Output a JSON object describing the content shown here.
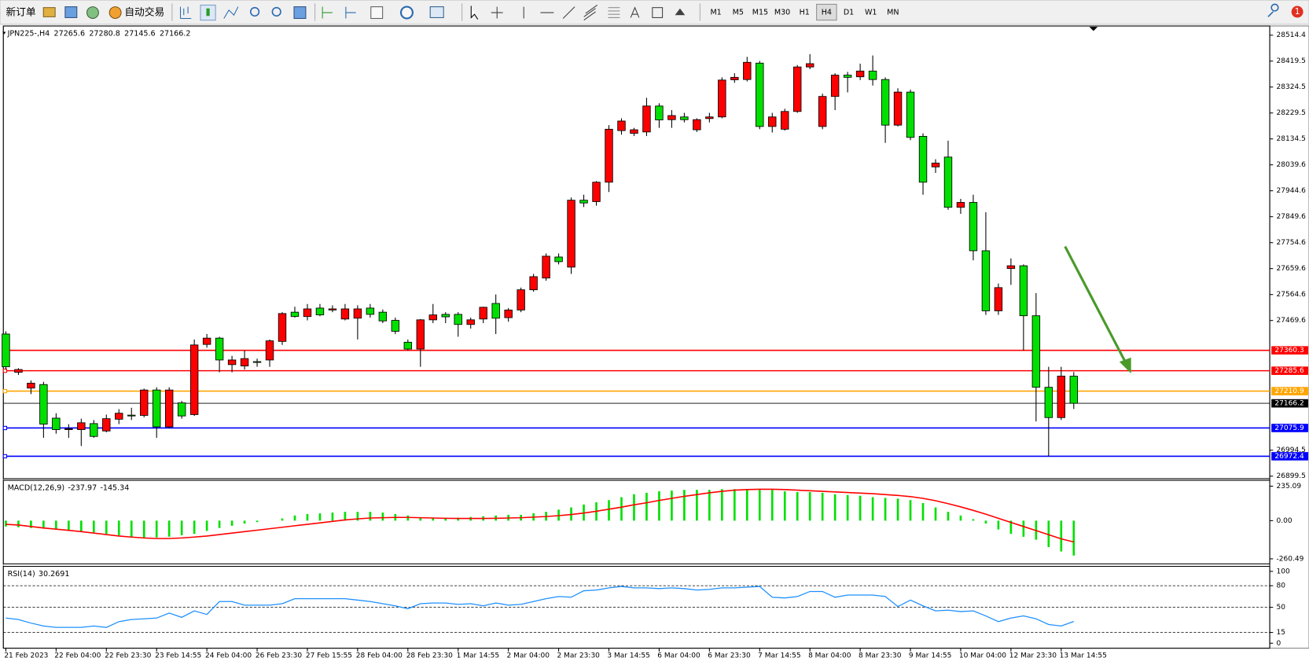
{
  "toolbar": {
    "new_order": "新订单",
    "auto_trading": "自动交易",
    "timeframes": [
      "M1",
      "M5",
      "M15",
      "M30",
      "H1",
      "H4",
      "D1",
      "W1",
      "MN"
    ],
    "active_timeframe": 5,
    "notifications": 1
  },
  "chart_data": [
    {
      "type": "candlestick",
      "title": "JPN225-,H4",
      "up_color": "#ff0000",
      "down_color": "#00e000",
      "ylim": [
        26893.4,
        28545.0
      ],
      "yticks": [
        28514.4,
        28419.5,
        28324.5,
        28229.5,
        28134.5,
        28039.6,
        27944.6,
        27849.6,
        27754.6,
        27659.6,
        27564.6,
        27469.6,
        26994.5,
        26899.5
      ],
      "levels": [
        {
          "value": 27360.3,
          "color": "#ff0000"
        },
        {
          "value": 27285.6,
          "color": "#ff0000"
        },
        {
          "value": 27210.9,
          "color": "#ffa500"
        },
        {
          "value": 27075.9,
          "color": "#0000ff"
        },
        {
          "value": 26972.4,
          "color": "#0000ff"
        }
      ],
      "xlabels": [
        "21 Feb 2023",
        "22 Feb 04:00",
        "22 Feb 23:30",
        "23 Feb 14:55",
        "24 Feb 04:00",
        "26 Feb 23:30",
        "27 Feb 15:55",
        "28 Feb 04:00",
        "28 Feb 23:30",
        "1 Mar 14:55",
        "2 Mar 04:00",
        "2 Mar 23:30",
        "3 Mar 14:55",
        "6 Mar 04:00",
        "6 Mar 23:30",
        "7 Mar 14:55",
        "8 Mar 04:00",
        "8 Mar 23:30",
        "9 Mar 14:55",
        "10 Mar 04:00",
        "12 Mar 23:30",
        "13 Mar 14:55"
      ],
      "ohlc": [
        [
          27420,
          27430,
          27290,
          27300
        ],
        [
          27280,
          27295,
          27270,
          27290
        ],
        [
          27222,
          27250,
          27200,
          27240
        ],
        [
          27235,
          27245,
          27040,
          27090
        ],
        [
          27112,
          27130,
          27055,
          27070
        ],
        [
          27071,
          27090,
          27040,
          27073
        ],
        [
          27070,
          27110,
          27010,
          27095
        ],
        [
          27092,
          27105,
          27040,
          27045
        ],
        [
          27065,
          27125,
          27060,
          27110
        ],
        [
          27108,
          27145,
          27090,
          27130
        ],
        [
          27123,
          27150,
          27105,
          27122
        ],
        [
          27122,
          27220,
          27115,
          27215
        ],
        [
          27215,
          27225,
          27040,
          27080
        ],
        [
          27080,
          27225,
          27075,
          27215
        ],
        [
          27168,
          27175,
          27110,
          27120
        ],
        [
          27125,
          27400,
          27120,
          27380
        ],
        [
          27382,
          27420,
          27370,
          27405
        ],
        [
          27405,
          27410,
          27280,
          27325
        ],
        [
          27308,
          27340,
          27280,
          27325
        ],
        [
          27303,
          27360,
          27290,
          27330
        ],
        [
          27319,
          27330,
          27300,
          27318
        ],
        [
          27325,
          27400,
          27300,
          27395
        ],
        [
          27393,
          27500,
          27380,
          27495
        ],
        [
          27500,
          27520,
          27480,
          27484
        ],
        [
          27484,
          27530,
          27470,
          27512
        ],
        [
          27515,
          27530,
          27485,
          27490
        ],
        [
          27508,
          27525,
          27500,
          27512
        ],
        [
          27475,
          27530,
          27470,
          27512
        ],
        [
          27478,
          27525,
          27400,
          27512
        ],
        [
          27515,
          27530,
          27480,
          27492
        ],
        [
          27500,
          27510,
          27460,
          27468
        ],
        [
          27470,
          27480,
          27420,
          27430
        ],
        [
          27390,
          27400,
          27360,
          27365
        ],
        [
          27365,
          27475,
          27300,
          27472
        ],
        [
          27472,
          27530,
          27460,
          27490
        ],
        [
          27492,
          27500,
          27460,
          27483
        ],
        [
          27492,
          27500,
          27410,
          27455
        ],
        [
          27455,
          27480,
          27440,
          27472
        ],
        [
          27475,
          27520,
          27460,
          27518
        ],
        [
          27532,
          27565,
          27420,
          27478
        ],
        [
          27480,
          27515,
          27465,
          27508
        ],
        [
          27508,
          27590,
          27500,
          27582
        ],
        [
          27582,
          27640,
          27575,
          27630
        ],
        [
          27625,
          27715,
          27615,
          27705
        ],
        [
          27702,
          27715,
          27675,
          27685
        ],
        [
          27665,
          27920,
          27640,
          27910
        ],
        [
          27910,
          27930,
          27885,
          27900
        ],
        [
          27905,
          27980,
          27890,
          27976
        ],
        [
          27976,
          28185,
          27940,
          28170
        ],
        [
          28165,
          28210,
          28150,
          28200
        ],
        [
          28155,
          28175,
          28145,
          28168
        ],
        [
          28160,
          28285,
          28145,
          28255
        ],
        [
          28255,
          28265,
          28175,
          28204
        ],
        [
          28205,
          28240,
          28175,
          28220
        ],
        [
          28215,
          28230,
          28195,
          28205
        ],
        [
          28168,
          28210,
          28160,
          28205
        ],
        [
          28209,
          28230,
          28195,
          28215
        ],
        [
          28215,
          28360,
          28210,
          28350
        ],
        [
          28351,
          28375,
          28340,
          28360
        ],
        [
          28352,
          28435,
          28345,
          28415
        ],
        [
          28412,
          28420,
          28170,
          28180
        ],
        [
          28180,
          28230,
          28158,
          28215
        ],
        [
          28170,
          28245,
          28165,
          28235
        ],
        [
          28235,
          28405,
          28230,
          28398
        ],
        [
          28398,
          28445,
          28390,
          28410
        ],
        [
          28180,
          28300,
          28170,
          28290
        ],
        [
          28290,
          28375,
          28240,
          28368
        ],
        [
          28368,
          28380,
          28305,
          28360
        ],
        [
          28362,
          28410,
          28350,
          28383
        ],
        [
          28383,
          28440,
          28330,
          28352
        ],
        [
          28352,
          28360,
          28120,
          28185
        ],
        [
          28185,
          28320,
          28180,
          28306
        ],
        [
          28306,
          28315,
          28130,
          28140
        ],
        [
          28144,
          28155,
          27930,
          27976
        ],
        [
          28032,
          28060,
          28010,
          28046
        ],
        [
          28068,
          28128,
          27875,
          27884
        ],
        [
          27884,
          27915,
          27860,
          27902
        ],
        [
          27902,
          27930,
          27690,
          27725
        ],
        [
          27725,
          27866,
          27490,
          27505
        ],
        [
          27505,
          27605,
          27490,
          27590
        ],
        [
          27660,
          27697,
          27600,
          27670
        ],
        [
          27670,
          27675,
          27360,
          27487
        ],
        [
          27487,
          27570,
          27100,
          27225
        ],
        [
          27225,
          27300,
          26972,
          27114
        ],
        [
          27114,
          27300,
          27105,
          27266
        ],
        [
          27265.6,
          27280.8,
          27145.6,
          27166.2
        ]
      ]
    },
    {
      "type": "macd",
      "title": "MACD(12,26,9)",
      "color": "#00e000",
      "ylim": [
        -289.0,
        269.3
      ],
      "yticks": [
        235.09,
        {
          "value": 0,
          "label": "0.00"
        },
        -260.49
      ],
      "values": [
        -40,
        -45,
        -50,
        -55,
        -60,
        -65,
        -75,
        -80,
        -90,
        -100,
        -110,
        -115,
        -115,
        -110,
        -100,
        -90,
        -70,
        -50,
        -35,
        -20,
        -10,
        0,
        15,
        35,
        45,
        50,
        55,
        60,
        60,
        60,
        55,
        45,
        35,
        20,
        20,
        20,
        20,
        25,
        30,
        35,
        40,
        40,
        50,
        60,
        75,
        90,
        110,
        125,
        140,
        160,
        180,
        190,
        200,
        205,
        210,
        210,
        210,
        215,
        215,
        215,
        210,
        210,
        200,
        195,
        195,
        190,
        180,
        175,
        170,
        160,
        155,
        150,
        140,
        120,
        90,
        60,
        35,
        10,
        -20,
        -60,
        -90,
        -110,
        -130,
        -180,
        -210,
        -237.97
      ],
      "signal": {
        "color": "#ff0000",
        "values": [
          -25,
          -30,
          -40,
          -50,
          -58,
          -66,
          -75,
          -85,
          -95,
          -105,
          -112,
          -118,
          -122,
          -122,
          -118,
          -112,
          -105,
          -95,
          -85,
          -75,
          -65,
          -55,
          -45,
          -35,
          -25,
          -15,
          -5,
          5,
          12,
          18,
          20,
          22,
          22,
          20,
          18,
          16,
          15,
          15,
          15,
          16,
          18,
          20,
          24,
          28,
          34,
          42,
          52,
          64,
          78,
          92,
          108,
          122,
          138,
          152,
          166,
          178,
          190,
          200,
          208,
          212,
          214,
          214,
          212,
          208,
          204,
          200,
          196,
          192,
          188,
          184,
          178,
          172,
          164,
          152,
          136,
          116,
          94,
          70,
          44,
          16,
          -12,
          -40,
          -68,
          -96,
          -124,
          -145.34
        ]
      }
    },
    {
      "type": "line",
      "title": "RSI(14)",
      "color": "#1e90ff",
      "ylim": [
        -5.8,
        105.8
      ],
      "yticks": [
        100,
        80,
        50,
        15,
        0
      ],
      "levels": [
        80,
        50,
        15
      ],
      "values": [
        35,
        33,
        28,
        24,
        22,
        22,
        22,
        24,
        22,
        30,
        33,
        34,
        35,
        42,
        36,
        45,
        40,
        58,
        58,
        53,
        53,
        53,
        55,
        62,
        62,
        62,
        62,
        62,
        60,
        58,
        55,
        52,
        48,
        55,
        56,
        56,
        54,
        55,
        52,
        56,
        53,
        54,
        58,
        62,
        65,
        64,
        73,
        74,
        77,
        79,
        77,
        77,
        76,
        77,
        76,
        74,
        75,
        77,
        77,
        78,
        79,
        64,
        63,
        65,
        72,
        72,
        64,
        67,
        67,
        67,
        65,
        51,
        60,
        52,
        45,
        46,
        44,
        45,
        38,
        30,
        35,
        38,
        34,
        26,
        24,
        30.2691
      ]
    }
  ]
}
